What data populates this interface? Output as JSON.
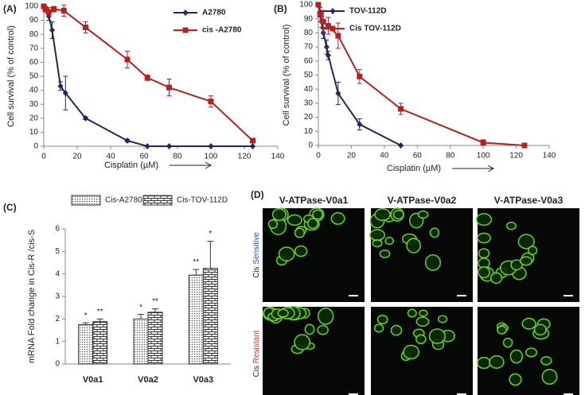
{
  "chart_data": [
    {
      "type": "line",
      "panel_label": "(A)",
      "x_label": "Cisplatin (µM)",
      "y_label": "Cell survival (% of control)",
      "xlim": [
        0,
        140
      ],
      "xticks": [
        0,
        20,
        40,
        60,
        80,
        100,
        120,
        140
      ],
      "ylim": [
        0,
        100
      ],
      "yticks": [
        0,
        10,
        20,
        30,
        40,
        50,
        60,
        70,
        80,
        90,
        100
      ],
      "grid": false,
      "legend": "upper right",
      "series": [
        {
          "name": "A2780",
          "color": "#1f2a5a",
          "marker": "diamond",
          "x": [
            0,
            1,
            2,
            3,
            5,
            10,
            13,
            25,
            50,
            62,
            75,
            100,
            125
          ],
          "values": [
            100,
            99,
            97,
            93,
            83,
            43,
            38,
            20,
            4,
            0,
            0,
            0,
            0
          ],
          "errors": [
            0,
            1,
            2,
            3,
            6,
            3,
            12,
            1,
            1,
            0,
            0,
            0,
            0
          ]
        },
        {
          "name": "cis -A2780",
          "color": "#b22222",
          "marker": "square",
          "x": [
            0,
            1,
            3,
            6,
            12,
            25,
            50,
            62,
            75,
            100,
            125
          ],
          "values": [
            100,
            98,
            96,
            98,
            97,
            85,
            62,
            49,
            42,
            32,
            4
          ],
          "errors": [
            0,
            2,
            3,
            2,
            4,
            4,
            6,
            2,
            6,
            4,
            0
          ]
        }
      ]
    },
    {
      "type": "line",
      "panel_label": "(B)",
      "x_label": "Cisplatin (µM)",
      "y_label": "Cell survival (% of control)",
      "xlim": [
        0,
        140
      ],
      "xticks": [
        0,
        20,
        40,
        60,
        80,
        100,
        120,
        140
      ],
      "ylim": [
        0,
        100
      ],
      "yticks": [
        0,
        10,
        20,
        30,
        40,
        50,
        60,
        70,
        80,
        90,
        100
      ],
      "grid": false,
      "legend": "upper left",
      "series": [
        {
          "name": "TOV-112D",
          "color": "#1f2a5a",
          "marker": "diamond",
          "x": [
            0,
            1,
            2,
            3,
            5,
            6,
            12,
            25,
            50
          ],
          "values": [
            100,
            95,
            88,
            80,
            70,
            64,
            37,
            15,
            0
          ],
          "errors": [
            0,
            3,
            4,
            4,
            5,
            3,
            8,
            4,
            0
          ]
        },
        {
          "name": "Cis TOV-112D",
          "color": "#b22222",
          "marker": "square",
          "x": [
            0,
            1,
            3,
            6,
            12,
            25,
            50,
            100,
            125
          ],
          "values": [
            100,
            93,
            88,
            85,
            78,
            49,
            26,
            2,
            0
          ],
          "errors": [
            0,
            5,
            8,
            6,
            9,
            5,
            4,
            2,
            0
          ]
        }
      ]
    },
    {
      "type": "bar",
      "panel_label": "(C)",
      "y_label": "mRNA Fold change in Cis-R /cis-S",
      "y_label_color": "#b22222",
      "categories": [
        "V0a1",
        "V0a2",
        "V0a3"
      ],
      "ylim": [
        0,
        6
      ],
      "yticks": [
        0,
        1,
        2,
        3,
        4,
        5,
        6
      ],
      "grid": false,
      "legend": "top",
      "series": [
        {
          "name": "Cis-A2780",
          "pattern": "dots",
          "values": [
            1.75,
            2.0,
            3.95
          ],
          "errors": [
            0.08,
            0.2,
            0.25
          ],
          "significance": [
            "*",
            "*",
            "**"
          ]
        },
        {
          "name": "Cis-TOV-112D",
          "pattern": "brick",
          "values": [
            1.88,
            2.3,
            4.25
          ],
          "errors": [
            0.12,
            0.15,
            1.2
          ],
          "significance": [
            "**",
            "**",
            "*"
          ]
        }
      ]
    }
  ],
  "microscopy": {
    "panel_label": "(D)",
    "columns": [
      "V-ATPase-V0a1",
      "V-ATPase-V0a2",
      "V-ATPase-V0a3"
    ],
    "rows": [
      {
        "prefix": "Cis",
        "label": "Sensitive",
        "color": "#2a52be"
      },
      {
        "prefix": "Cis",
        "label": "Resistant",
        "color": "#c0392b"
      }
    ]
  }
}
